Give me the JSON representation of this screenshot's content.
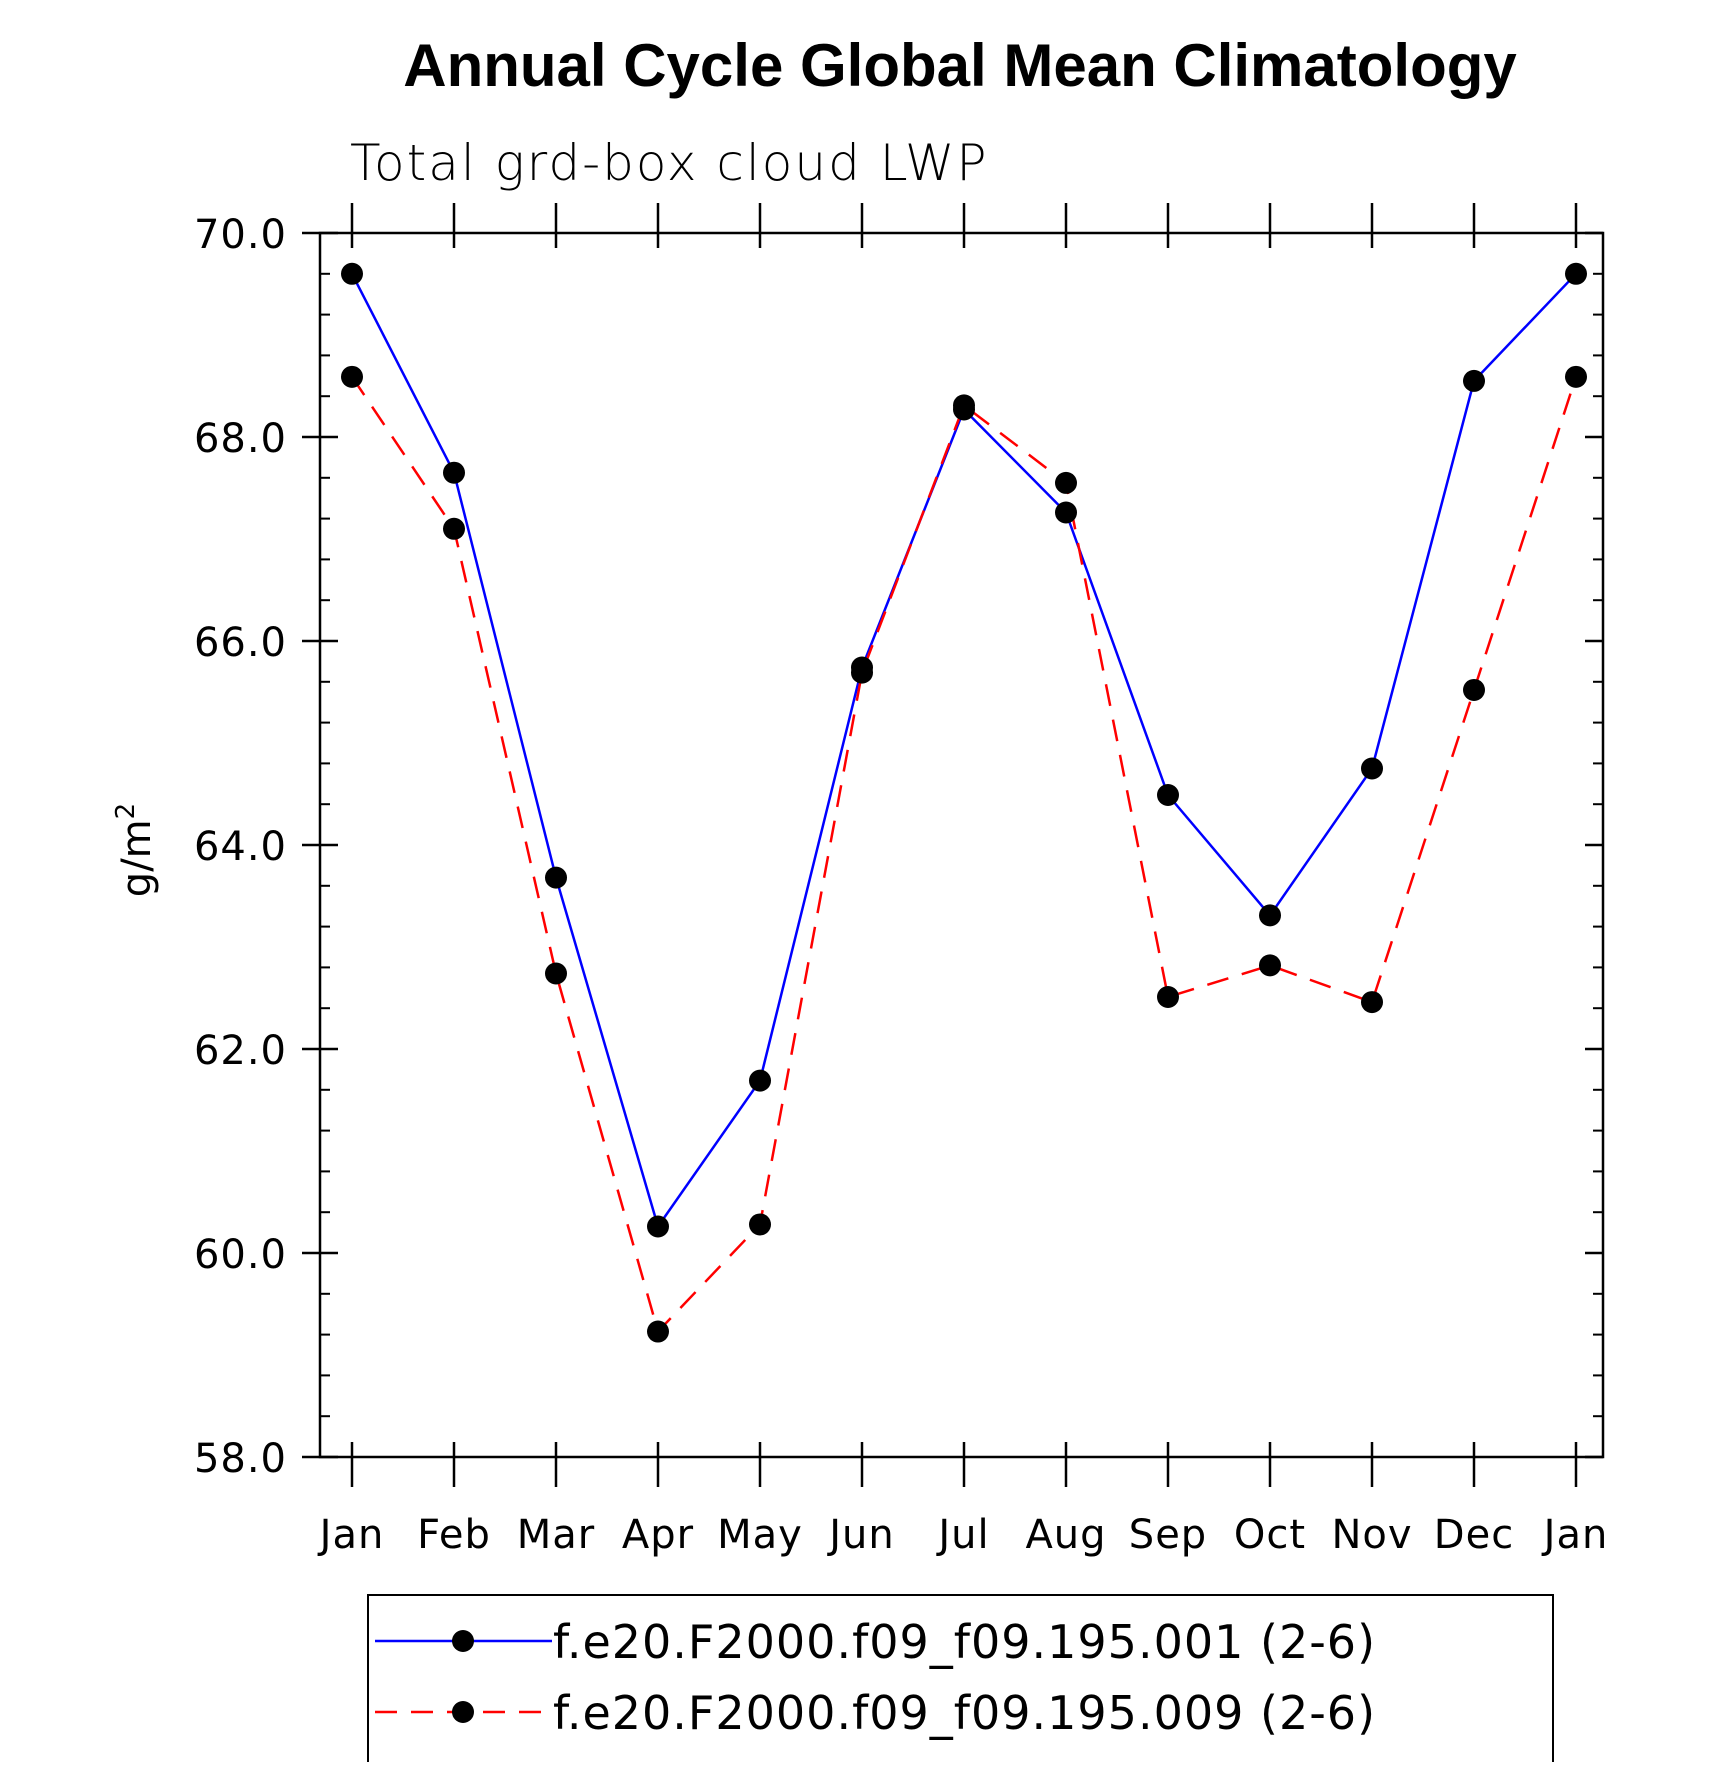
{
  "chart_data": {
    "type": "line",
    "title": "Annual Cycle Global Mean Climatology",
    "subtitle": "Total grd-box cloud LWP",
    "ylabel": "g/m",
    "ylabel_superscript": "2",
    "xlabel": "",
    "categories": [
      "Jan",
      "Feb",
      "Mar",
      "Apr",
      "May",
      "Jun",
      "Jul",
      "Aug",
      "Sep",
      "Oct",
      "Nov",
      "Dec",
      "Jan"
    ],
    "ylim": [
      58.0,
      70.0
    ],
    "yticks": [
      "58.0",
      "60.0",
      "62.0",
      "64.0",
      "66.0",
      "68.0",
      "70.0"
    ],
    "series": [
      {
        "name": "f.e20.F2000.f09_f09.195.001 (2-6)",
        "color": "#0000ff",
        "dash": "solid",
        "values": [
          69.6,
          67.65,
          63.68,
          60.26,
          61.69,
          65.74,
          68.27,
          67.26,
          64.49,
          63.31,
          64.75,
          68.55,
          69.6
        ]
      },
      {
        "name": "f.e20.F2000.f09_f09.195.009 (2-6)",
        "color": "#ff0000",
        "dash": "dashed",
        "values": [
          68.59,
          67.1,
          62.74,
          59.23,
          60.28,
          65.69,
          68.31,
          67.55,
          62.51,
          62.82,
          62.46,
          65.52,
          68.59
        ]
      }
    ],
    "marker_color": "#000000",
    "grid": false,
    "legend_position": "bottom"
  }
}
